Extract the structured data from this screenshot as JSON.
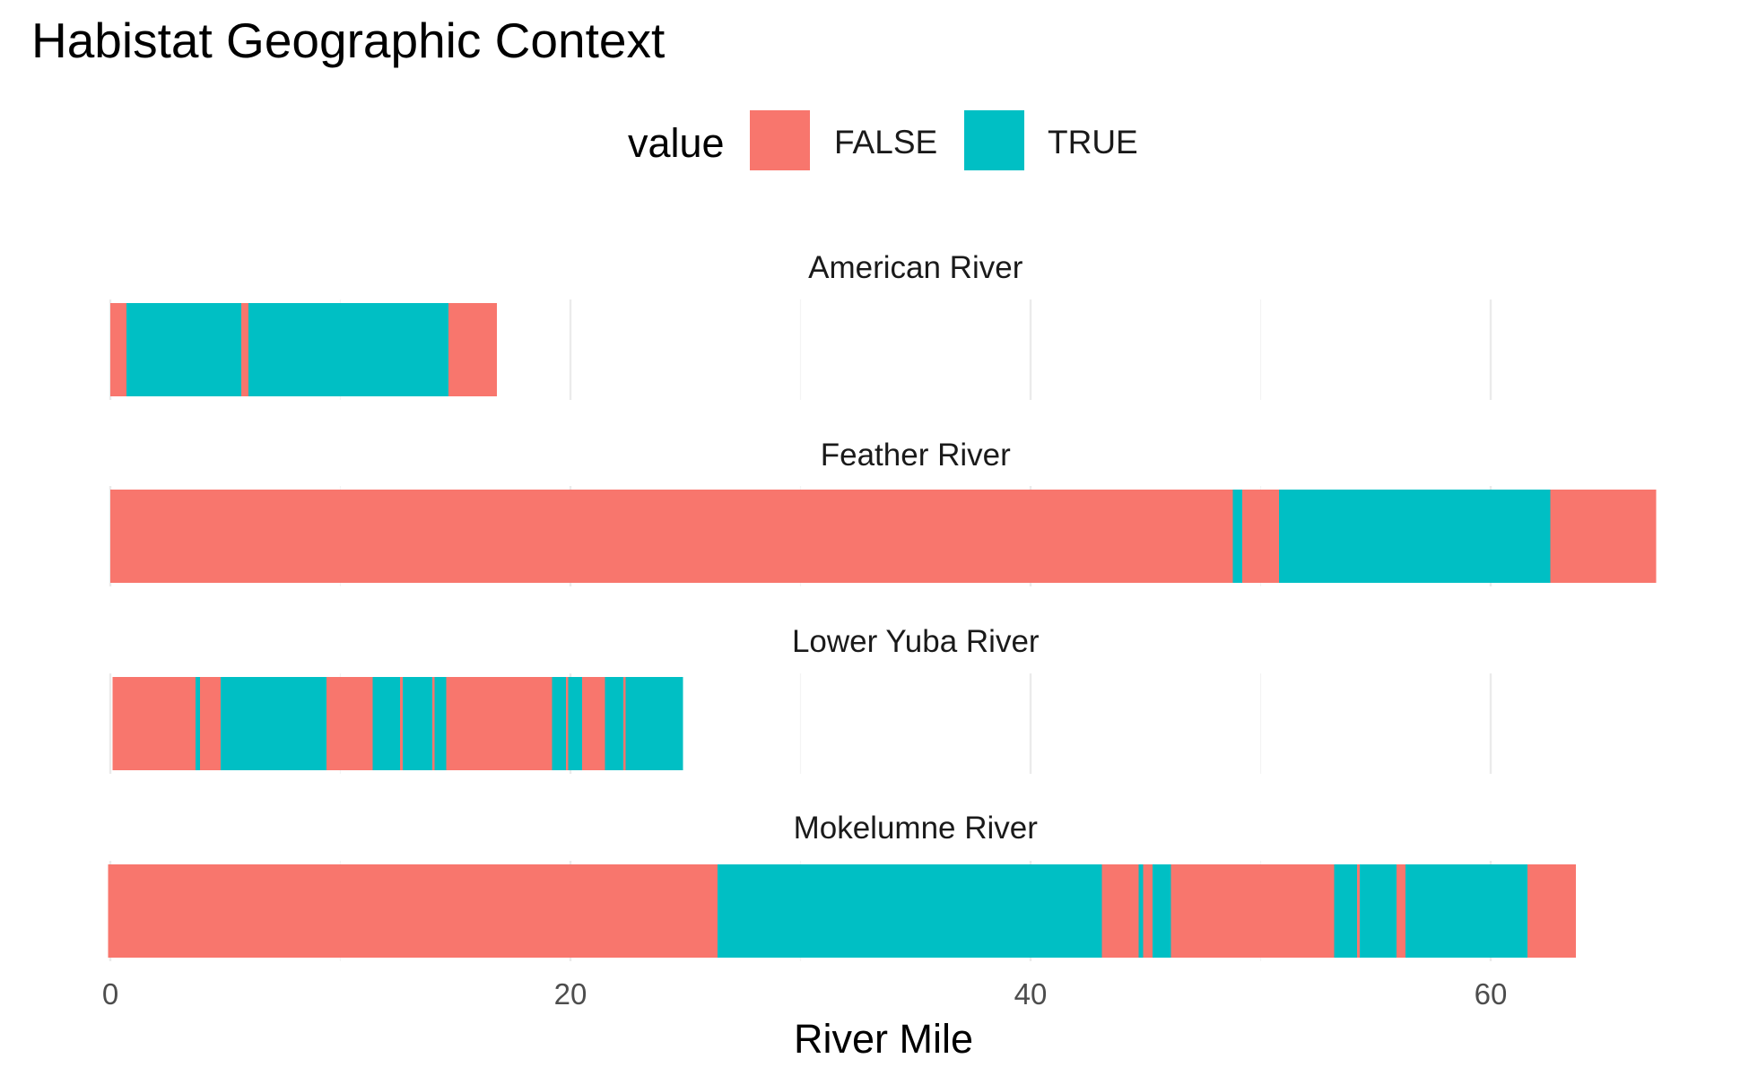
{
  "chart_data": {
    "type": "bar",
    "title": "Habistat Geographic Context",
    "xlabel": "River Mile",
    "ylabel": "",
    "xlim": [
      0,
      70
    ],
    "x_ticks": [
      0,
      20,
      40,
      60
    ],
    "x_tick_labels": [
      "0",
      "20",
      "40",
      "60"
    ],
    "grid": true,
    "legend": {
      "title": "value",
      "position": "top",
      "entries": [
        {
          "label": "FALSE",
          "color": "#F8766D"
        },
        {
          "label": "TRUE",
          "color": "#00BFC4"
        }
      ]
    },
    "facets": [
      {
        "label": "American River",
        "segments": [
          {
            "start": 0.0,
            "end": 0.7,
            "value": "FALSE"
          },
          {
            "start": 0.7,
            "end": 5.7,
            "value": "TRUE"
          },
          {
            "start": 5.7,
            "end": 6.0,
            "value": "FALSE"
          },
          {
            "start": 6.0,
            "end": 14.7,
            "value": "TRUE"
          },
          {
            "start": 14.7,
            "end": 16.8,
            "value": "FALSE"
          }
        ]
      },
      {
        "label": "Feather River",
        "segments": [
          {
            "start": 0.0,
            "end": 48.8,
            "value": "FALSE"
          },
          {
            "start": 48.8,
            "end": 49.2,
            "value": "TRUE"
          },
          {
            "start": 49.2,
            "end": 50.8,
            "value": "FALSE"
          },
          {
            "start": 50.8,
            "end": 62.6,
            "value": "TRUE"
          },
          {
            "start": 62.6,
            "end": 67.2,
            "value": "FALSE"
          }
        ]
      },
      {
        "label": "Lower Yuba River",
        "segments": [
          {
            "start": 0.1,
            "end": 3.7,
            "value": "FALSE"
          },
          {
            "start": 3.7,
            "end": 3.9,
            "value": "TRUE"
          },
          {
            "start": 3.9,
            "end": 4.8,
            "value": "FALSE"
          },
          {
            "start": 4.8,
            "end": 9.4,
            "value": "TRUE"
          },
          {
            "start": 9.4,
            "end": 11.4,
            "value": "FALSE"
          },
          {
            "start": 11.4,
            "end": 12.6,
            "value": "TRUE"
          },
          {
            "start": 12.6,
            "end": 12.7,
            "value": "FALSE"
          },
          {
            "start": 12.7,
            "end": 14.0,
            "value": "TRUE"
          },
          {
            "start": 14.0,
            "end": 14.1,
            "value": "FALSE"
          },
          {
            "start": 14.1,
            "end": 14.6,
            "value": "TRUE"
          },
          {
            "start": 14.6,
            "end": 19.2,
            "value": "FALSE"
          },
          {
            "start": 19.2,
            "end": 19.8,
            "value": "TRUE"
          },
          {
            "start": 19.8,
            "end": 19.9,
            "value": "FALSE"
          },
          {
            "start": 19.9,
            "end": 20.5,
            "value": "TRUE"
          },
          {
            "start": 20.5,
            "end": 21.5,
            "value": "FALSE"
          },
          {
            "start": 21.5,
            "end": 22.3,
            "value": "TRUE"
          },
          {
            "start": 22.3,
            "end": 22.4,
            "value": "FALSE"
          },
          {
            "start": 22.4,
            "end": 24.9,
            "value": "TRUE"
          }
        ]
      },
      {
        "label": "Mokelumne River",
        "segments": [
          {
            "start": -0.1,
            "end": 26.4,
            "value": "FALSE"
          },
          {
            "start": 26.4,
            "end": 43.1,
            "value": "TRUE"
          },
          {
            "start": 43.1,
            "end": 44.7,
            "value": "FALSE"
          },
          {
            "start": 44.7,
            "end": 44.9,
            "value": "TRUE"
          },
          {
            "start": 44.9,
            "end": 45.3,
            "value": "FALSE"
          },
          {
            "start": 45.3,
            "end": 46.1,
            "value": "TRUE"
          },
          {
            "start": 46.1,
            "end": 53.2,
            "value": "FALSE"
          },
          {
            "start": 53.2,
            "end": 54.2,
            "value": "TRUE"
          },
          {
            "start": 54.2,
            "end": 54.3,
            "value": "FALSE"
          },
          {
            "start": 54.3,
            "end": 55.9,
            "value": "TRUE"
          },
          {
            "start": 55.9,
            "end": 56.3,
            "value": "FALSE"
          },
          {
            "start": 56.3,
            "end": 61.6,
            "value": "TRUE"
          },
          {
            "start": 61.6,
            "end": 63.7,
            "value": "FALSE"
          }
        ]
      }
    ]
  }
}
